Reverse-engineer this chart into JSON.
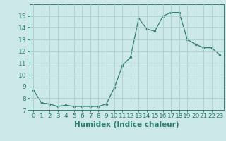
{
  "x": [
    0,
    1,
    2,
    3,
    4,
    5,
    6,
    7,
    8,
    9,
    10,
    11,
    12,
    13,
    14,
    15,
    16,
    17,
    18,
    19,
    20,
    21,
    22,
    23
  ],
  "y": [
    8.7,
    7.6,
    7.5,
    7.3,
    7.4,
    7.3,
    7.3,
    7.3,
    7.3,
    7.5,
    8.9,
    10.8,
    11.5,
    14.8,
    13.9,
    13.7,
    15.0,
    15.3,
    15.3,
    13.0,
    12.6,
    12.3,
    12.3,
    11.7
  ],
  "xlim": [
    -0.5,
    23.5
  ],
  "ylim": [
    7,
    16.0
  ],
  "yticks": [
    7,
    8,
    9,
    10,
    11,
    12,
    13,
    14,
    15
  ],
  "xticks": [
    0,
    1,
    2,
    3,
    4,
    5,
    6,
    7,
    8,
    9,
    10,
    11,
    12,
    13,
    14,
    15,
    16,
    17,
    18,
    19,
    20,
    21,
    22,
    23
  ],
  "xlabel": "Humidex (Indice chaleur)",
  "line_color": "#2e7d6e",
  "marker_color": "#2e7d6e",
  "bg_color": "#cce8e8",
  "grid_color": "#aacfcf",
  "xlabel_fontsize": 7.5,
  "tick_fontsize": 6.5
}
